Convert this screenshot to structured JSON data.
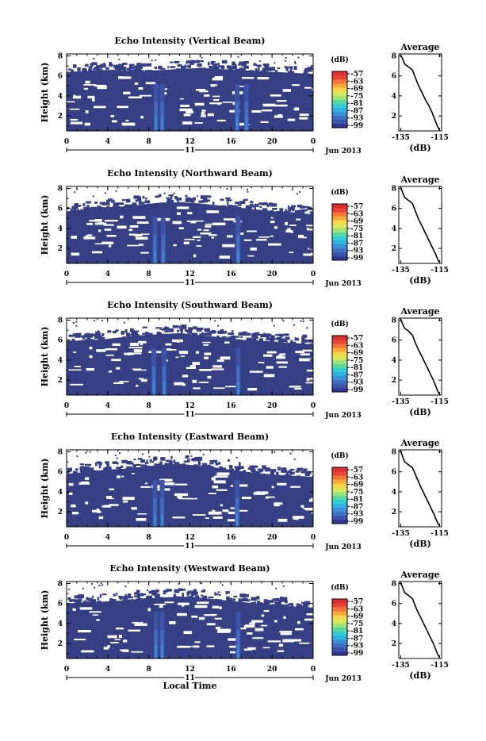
{
  "colorbar": {
    "unit_label": "(dB)",
    "ticks": [
      "-57",
      "-63",
      "-69",
      "-75",
      "-81",
      "-87",
      "-93",
      "-99"
    ],
    "colors": [
      "#313695",
      "#3d53a8",
      "#3f6fc2",
      "#3a8fd6",
      "#2fb0e0",
      "#33ccd0",
      "#5ad7a0",
      "#9ee27a",
      "#d6e85c",
      "#f7d84a",
      "#f9a93b",
      "#f4743a",
      "#e8453a",
      "#d92f30"
    ]
  },
  "fill_color": "#373f84",
  "chart_data": [
    {
      "type": "heatmap",
      "title": "Echo Intensity (Vertical Beam)",
      "ylabel": "Height (km)",
      "x_ticks": [
        "0",
        "4",
        "8",
        "12",
        "16",
        "20",
        "0"
      ],
      "y_ticks": [
        "8",
        "6",
        "4",
        "2"
      ],
      "date_label": "11",
      "month_label": "Jun 2013",
      "xlim": [
        0,
        24
      ],
      "ylim": [
        0.5,
        8.2
      ],
      "echo_top_km": [
        6.4,
        6.5,
        6.6,
        6.5,
        6.5,
        6.6,
        6.7,
        6.8,
        6.7,
        6.6,
        6.5,
        6.4,
        6.3,
        6.2
      ],
      "convective_hours": [
        8.7,
        9.3,
        16.6,
        17.5
      ],
      "average": {
        "title": "Average",
        "xlabel": "(dB)",
        "x_ticks": [
          "-135",
          "-115"
        ],
        "y_ticks": [
          "8",
          "6",
          "4",
          "2"
        ],
        "xlim": [
          -136,
          -114
        ],
        "profile_db": [
          -135,
          -134,
          -133,
          -131,
          -129,
          -128,
          -127,
          -126,
          -125,
          -124,
          -123,
          -122,
          -121,
          -120,
          -119,
          -118,
          -117,
          -116,
          -115
        ],
        "profile_km": [
          8.1,
          7.7,
          7.2,
          6.9,
          6.6,
          6.1,
          5.6,
          5.1,
          4.7,
          4.3,
          3.9,
          3.5,
          3.2,
          2.8,
          2.4,
          1.9,
          1.4,
          0.9,
          0.6
        ]
      }
    },
    {
      "type": "heatmap",
      "title": "Echo Intensity (Northward Beam)",
      "ylabel": "Height (km)",
      "x_ticks": [
        "0",
        "4",
        "8",
        "12",
        "16",
        "20",
        "0"
      ],
      "y_ticks": [
        "8",
        "6",
        "4",
        "2"
      ],
      "date_label": "11",
      "month_label": "Jun 2013",
      "xlim": [
        0,
        24
      ],
      "ylim": [
        0.5,
        8.2
      ],
      "echo_top_km": [
        5.7,
        5.9,
        6.1,
        6.2,
        6.4,
        6.6,
        6.6,
        6.5,
        6.3,
        6.1,
        5.9,
        5.7,
        5.6,
        5.4
      ],
      "convective_hours": [
        8.6,
        9.4,
        16.7
      ],
      "average": {
        "title": "Average",
        "xlabel": "(dB)",
        "x_ticks": [
          "-135",
          "-115"
        ],
        "y_ticks": [
          "8",
          "6",
          "4",
          "2"
        ],
        "xlim": [
          -136,
          -114
        ],
        "profile_db": [
          -135,
          -134,
          -133,
          -131,
          -129,
          -128,
          -127,
          -126,
          -125,
          -124,
          -123,
          -122,
          -121,
          -120,
          -119,
          -118,
          -117,
          -116,
          -115
        ],
        "profile_km": [
          8.1,
          7.6,
          7.1,
          6.8,
          6.5,
          6.0,
          5.5,
          5.0,
          4.6,
          4.2,
          3.8,
          3.4,
          3.0,
          2.6,
          2.2,
          1.8,
          1.4,
          0.9,
          0.6
        ]
      }
    },
    {
      "type": "heatmap",
      "title": "Echo Intensity (Southward Beam)",
      "ylabel": "Height (km)",
      "x_ticks": [
        "0",
        "4",
        "8",
        "12",
        "16",
        "20",
        "0"
      ],
      "y_ticks": [
        "8",
        "6",
        "4",
        "2"
      ],
      "date_label": "11",
      "month_label": "Jun 2013",
      "xlim": [
        0,
        24
      ],
      "ylim": [
        0.5,
        8.2
      ],
      "echo_top_km": [
        5.9,
        6.0,
        6.1,
        6.3,
        6.5,
        6.6,
        6.7,
        6.5,
        6.3,
        6.1,
        5.9,
        5.8,
        5.7,
        5.6
      ],
      "convective_hours": [
        8.5,
        9.5,
        16.7
      ],
      "average": {
        "title": "Average",
        "xlabel": "(dB)",
        "x_ticks": [
          "-135",
          "-115"
        ],
        "y_ticks": [
          "8",
          "6",
          "4",
          "2"
        ],
        "xlim": [
          -136,
          -114
        ],
        "profile_db": [
          -135,
          -134,
          -133,
          -131,
          -129,
          -128,
          -127,
          -126,
          -125,
          -124,
          -123,
          -122,
          -121,
          -120,
          -119,
          -118,
          -117,
          -116,
          -115
        ],
        "profile_km": [
          8.1,
          7.6,
          7.2,
          6.9,
          6.5,
          6.0,
          5.5,
          5.1,
          4.7,
          4.3,
          3.9,
          3.5,
          3.1,
          2.7,
          2.3,
          1.9,
          1.4,
          0.9,
          0.6
        ]
      }
    },
    {
      "type": "heatmap",
      "title": "Echo Intensity (Eastward Beam)",
      "ylabel": "Height (km)",
      "x_ticks": [
        "0",
        "4",
        "8",
        "12",
        "16",
        "20",
        "0"
      ],
      "y_ticks": [
        "8",
        "6",
        "4",
        "2"
      ],
      "date_label": "11",
      "month_label": "Jun 2013",
      "xlim": [
        0,
        24
      ],
      "ylim": [
        0.5,
        8.2
      ],
      "echo_top_km": [
        5.8,
        6.0,
        6.2,
        6.3,
        6.5,
        6.7,
        6.8,
        6.6,
        6.4,
        6.1,
        5.9,
        5.7,
        5.6,
        5.5
      ],
      "convective_hours": [
        8.6,
        9.3,
        16.6
      ],
      "average": {
        "title": "Average",
        "xlabel": "(dB)",
        "x_ticks": [
          "-135",
          "-115"
        ],
        "y_ticks": [
          "8",
          "6",
          "4",
          "2"
        ],
        "xlim": [
          -136,
          -114
        ],
        "profile_db": [
          -135,
          -134,
          -133,
          -131,
          -129,
          -128,
          -127,
          -126,
          -125,
          -124,
          -123,
          -122,
          -121,
          -120,
          -119,
          -118,
          -117,
          -116,
          -115
        ],
        "profile_km": [
          8.1,
          7.5,
          7.0,
          6.7,
          6.4,
          6.0,
          5.5,
          5.1,
          4.6,
          4.2,
          3.8,
          3.4,
          3.0,
          2.6,
          2.2,
          1.8,
          1.3,
          0.9,
          0.6
        ]
      }
    },
    {
      "type": "heatmap",
      "title": "Echo Intensity (Westward Beam)",
      "ylabel": "Height (km)",
      "x_ticks": [
        "0",
        "4",
        "8",
        "12",
        "16",
        "20",
        "0"
      ],
      "y_ticks": [
        "8",
        "6",
        "4",
        "2"
      ],
      "date_label": "11",
      "month_label": "Jun 2013",
      "xlabel": "Local Time",
      "xlim": [
        0,
        24
      ],
      "ylim": [
        0.5,
        8.2
      ],
      "echo_top_km": [
        6.0,
        6.1,
        6.2,
        6.3,
        6.5,
        6.6,
        6.7,
        6.6,
        6.4,
        6.2,
        6.0,
        5.8,
        5.7,
        5.6
      ],
      "convective_hours": [
        8.7,
        9.3,
        16.7
      ],
      "average": {
        "title": "Average",
        "xlabel": "(dB)",
        "x_ticks": [
          "-135",
          "-115"
        ],
        "y_ticks": [
          "8",
          "6",
          "4",
          "2"
        ],
        "xlim": [
          -136,
          -114
        ],
        "profile_db": [
          -135,
          -134,
          -133,
          -131,
          -129,
          -128,
          -127,
          -126,
          -125,
          -124,
          -123,
          -122,
          -121,
          -120,
          -119,
          -118,
          -117,
          -116,
          -115
        ],
        "profile_km": [
          8.1,
          7.6,
          7.1,
          6.8,
          6.5,
          6.0,
          5.5,
          5.1,
          4.7,
          4.3,
          3.9,
          3.5,
          3.1,
          2.7,
          2.3,
          1.9,
          1.4,
          0.9,
          0.6
        ]
      }
    }
  ]
}
